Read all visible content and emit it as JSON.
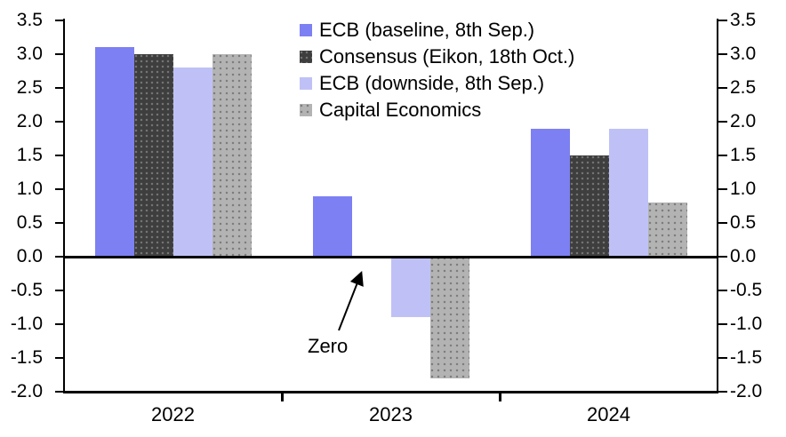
{
  "chart_data": {
    "type": "bar",
    "categories": [
      "2022",
      "2023",
      "2024"
    ],
    "series": [
      {
        "name": "ECB (baseline, 8th Sep.)",
        "color": "#7D80F2",
        "pattern": "solid",
        "values": [
          3.1,
          0.9,
          1.9
        ]
      },
      {
        "name": "Consensus (Eikon, 18th Oct.)",
        "color": "#3E3E3E",
        "pattern": "dots-light",
        "values": [
          3.0,
          0.0,
          1.5
        ]
      },
      {
        "name": "ECB (downside, 8th Sep.)",
        "color": "#BFC1F6",
        "pattern": "solid",
        "values": [
          2.8,
          -0.9,
          1.9
        ]
      },
      {
        "name": "Capital Economics",
        "color": "#B3B3B3",
        "pattern": "dots-dark",
        "values": [
          3.0,
          -1.8,
          0.8
        ]
      }
    ],
    "title": "",
    "xlabel": "",
    "ylabel": "",
    "ylim": [
      -2.0,
      3.5
    ],
    "yticks": [
      "3.5",
      "3.0",
      "2.5",
      "2.0",
      "1.5",
      "1.0",
      "0.5",
      "0.0",
      "-0.5",
      "-1.0",
      "-1.5",
      "-2.0"
    ],
    "y_axis_sides": [
      "left",
      "right"
    ],
    "grid": false,
    "legend_position": "top-center",
    "annotation": {
      "text": "Zero",
      "target_series": "Consensus (Eikon, 18th Oct.)",
      "target_category": "2023",
      "target_value": 0.0
    },
    "axis_color": "#000000",
    "background_color": "#FFFFFF"
  }
}
